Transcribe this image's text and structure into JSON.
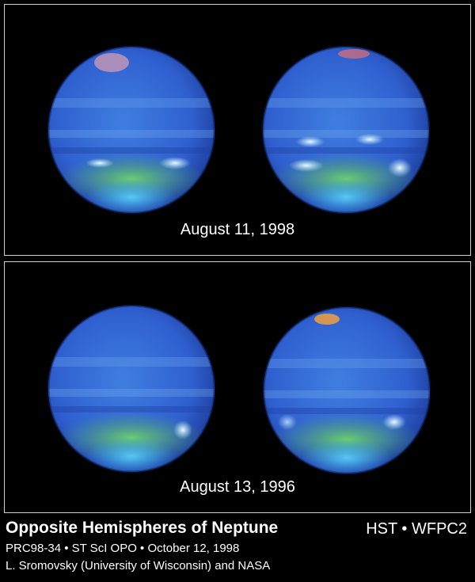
{
  "panels": [
    {
      "date": "August 11, 1998"
    },
    {
      "date": "August 13, 1996"
    }
  ],
  "caption": {
    "title": "Opposite Hemispheres of Neptune",
    "instrument": "HST • WFPC2",
    "credit_line": "PRC98-34 • ST ScI OPO • October 12, 1998",
    "authors": "L. Sromovsky (University of Wisconsin) and NASA"
  }
}
